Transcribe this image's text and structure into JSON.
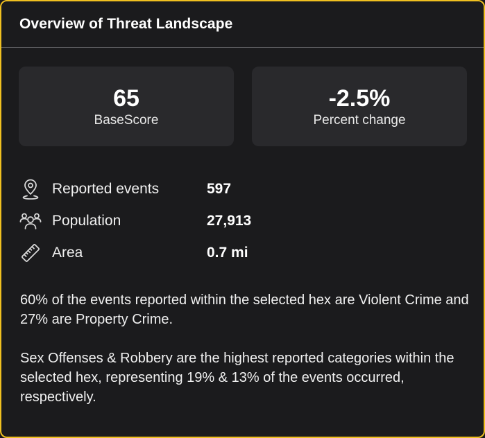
{
  "panel": {
    "title": "Overview of Threat Landscape"
  },
  "stats": [
    {
      "value": "65",
      "label": "BaseScore"
    },
    {
      "value": "-2.5%",
      "label": "Percent change"
    }
  ],
  "metrics": [
    {
      "icon": "map-pin-icon",
      "label": "Reported events",
      "value": "597"
    },
    {
      "icon": "users-icon",
      "label": "Population",
      "value": "27,913"
    },
    {
      "icon": "ruler-icon",
      "label": "Area",
      "value": "0.7 mi"
    }
  ],
  "summary": {
    "paragraph_1": "60% of the events reported within the selected hex are Violent Crime and 27% are Property Crime.",
    "paragraph_2": "Sex Offenses & Robbery are the highest reported categories within the selected hex, representing 19% & 13% of the events occurred, respectively."
  },
  "colors": {
    "border_accent": "#f0c020",
    "panel_bg": "#1b1b1d",
    "card_bg": "#29292c",
    "text": "#f2f2f2"
  }
}
